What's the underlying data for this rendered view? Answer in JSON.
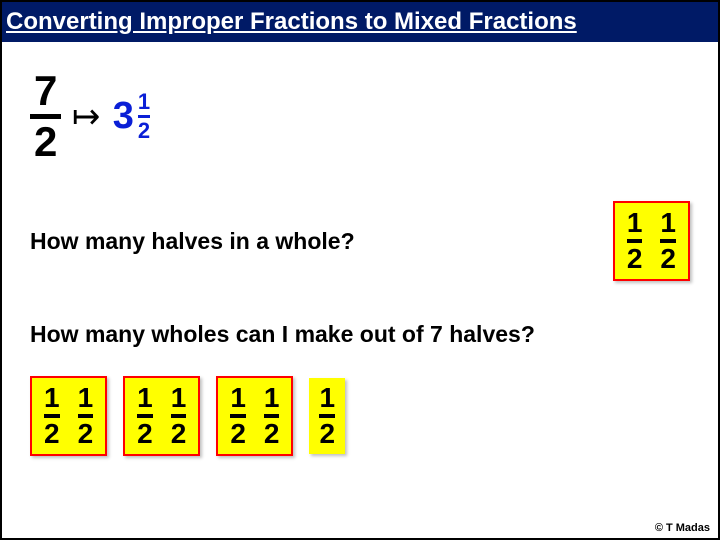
{
  "title": "Converting Improper Fractions to Mixed Fractions",
  "improper": {
    "num": "7",
    "den": "2"
  },
  "arrow_glyph": "↦",
  "mixed": {
    "whole": "3",
    "num": "1",
    "den": "2"
  },
  "question1": "How many halves in a whole?",
  "whole_pair": {
    "a_num": "1",
    "a_den": "2",
    "b_num": "1",
    "b_den": "2"
  },
  "question2": "How many wholes can I make out of 7 halves?",
  "halves_groups": [
    {
      "a_num": "1",
      "a_den": "2",
      "b_num": "1",
      "b_den": "2"
    },
    {
      "a_num": "1",
      "a_den": "2",
      "b_num": "1",
      "b_den": "2"
    },
    {
      "a_num": "1",
      "a_den": "2",
      "b_num": "1",
      "b_den": "2"
    }
  ],
  "leftover": {
    "num": "1",
    "den": "2"
  },
  "credit": "© T Madas",
  "colors": {
    "title_bg": "#001a66",
    "title_fg": "#ffffff",
    "accent_blue": "#0a1fd6",
    "yellow": "#ffff00",
    "red_border": "#ff0000"
  }
}
